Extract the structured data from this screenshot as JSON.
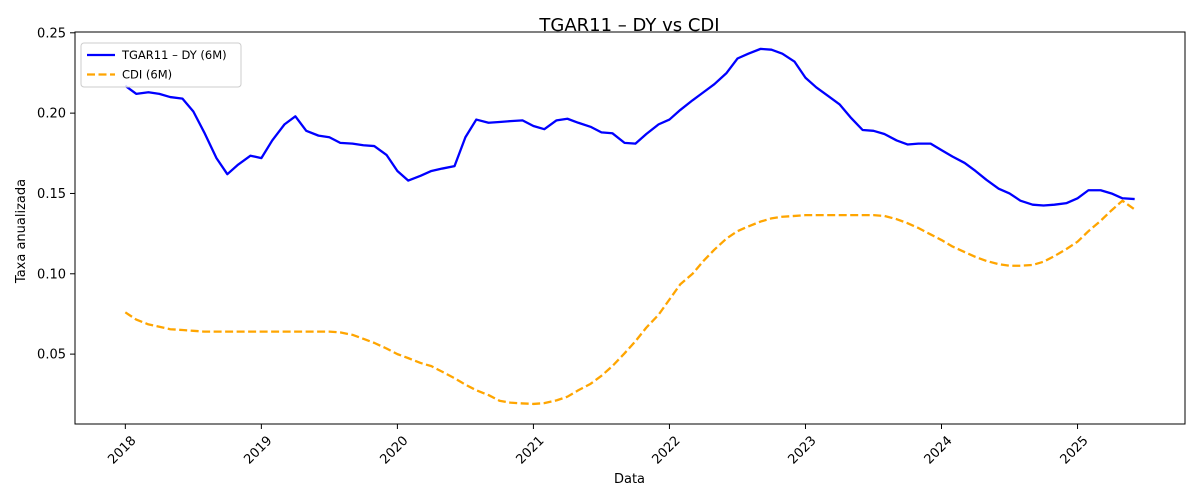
{
  "chart_data": {
    "type": "line",
    "title": "TGAR11 – DY vs CDI",
    "xlabel": "Data",
    "ylabel": "Taxa anualizada",
    "xlim": [
      2017.63,
      2025.79
    ],
    "ylim": [
      0.0065,
      0.2505
    ],
    "x_ticks": [
      2018,
      2019,
      2020,
      2021,
      2022,
      2023,
      2024,
      2025
    ],
    "x_tick_labels": [
      "2018",
      "2019",
      "2020",
      "2021",
      "2022",
      "2023",
      "2024",
      "2025"
    ],
    "y_ticks": [
      0.05,
      0.1,
      0.15,
      0.2,
      0.25
    ],
    "y_tick_labels": [
      "0.05",
      "0.10",
      "0.15",
      "0.20",
      "0.25"
    ],
    "grid": false,
    "legend_position": "top-left",
    "series": [
      {
        "name": "TGAR11 – DY (6M)",
        "color": "#0000ff",
        "style": "solid",
        "x": [
          2018.0,
          2018.08,
          2018.17,
          2018.25,
          2018.33,
          2018.42,
          2018.5,
          2018.58,
          2018.67,
          2018.75,
          2018.83,
          2018.92,
          2019.0,
          2019.08,
          2019.17,
          2019.25,
          2019.33,
          2019.42,
          2019.5,
          2019.58,
          2019.67,
          2019.75,
          2019.83,
          2019.92,
          2020.0,
          2020.08,
          2020.17,
          2020.25,
          2020.33,
          2020.42,
          2020.5,
          2020.58,
          2020.67,
          2020.75,
          2020.83,
          2020.92,
          2021.0,
          2021.08,
          2021.17,
          2021.25,
          2021.33,
          2021.42,
          2021.5,
          2021.58,
          2021.67,
          2021.75,
          2021.83,
          2021.92,
          2022.0,
          2022.08,
          2022.17,
          2022.25,
          2022.33,
          2022.42,
          2022.5,
          2022.58,
          2022.67,
          2022.75,
          2022.83,
          2022.92,
          2023.0,
          2023.08,
          2023.17,
          2023.25,
          2023.33,
          2023.42,
          2023.5,
          2023.58,
          2023.67,
          2023.75,
          2023.83,
          2023.92,
          2024.0,
          2024.08,
          2024.17,
          2024.25,
          2024.33,
          2024.42,
          2024.5,
          2024.58,
          2024.67,
          2024.75,
          2024.83,
          2024.92,
          2025.0,
          2025.08,
          2025.17,
          2025.25,
          2025.33,
          2025.42
        ],
        "values": [
          0.217,
          0.212,
          0.213,
          0.212,
          0.21,
          0.209,
          0.201,
          0.188,
          0.172,
          0.162,
          0.168,
          0.1735,
          0.172,
          0.183,
          0.193,
          0.198,
          0.189,
          0.186,
          0.185,
          0.1815,
          0.181,
          0.18,
          0.1795,
          0.174,
          0.164,
          0.158,
          0.161,
          0.164,
          0.1655,
          0.167,
          0.185,
          0.196,
          0.194,
          0.1945,
          0.195,
          0.1955,
          0.192,
          0.19,
          0.1955,
          0.1965,
          0.194,
          0.1915,
          0.188,
          0.1875,
          0.1815,
          0.181,
          0.187,
          0.193,
          0.196,
          0.202,
          0.208,
          0.213,
          0.218,
          0.225,
          0.234,
          0.237,
          0.24,
          0.2395,
          0.237,
          0.232,
          0.222,
          0.216,
          0.2105,
          0.2055,
          0.1975,
          0.1895,
          0.189,
          0.187,
          0.183,
          0.1805,
          0.181,
          0.181,
          0.177,
          0.173,
          0.169,
          0.164,
          0.1585,
          0.153,
          0.15,
          0.1455,
          0.143,
          0.1425,
          0.143,
          0.144,
          0.147,
          0.152,
          0.152,
          0.15,
          0.147,
          0.1465
        ]
      },
      {
        "name": "CDI (6M)",
        "color": "#ffa500",
        "style": "dashed",
        "x": [
          2018.0,
          2018.08,
          2018.17,
          2018.25,
          2018.33,
          2018.42,
          2018.5,
          2018.58,
          2018.67,
          2018.75,
          2018.83,
          2018.92,
          2019.0,
          2019.08,
          2019.17,
          2019.25,
          2019.33,
          2019.42,
          2019.5,
          2019.58,
          2019.67,
          2019.75,
          2019.83,
          2019.92,
          2020.0,
          2020.08,
          2020.17,
          2020.25,
          2020.33,
          2020.42,
          2020.5,
          2020.58,
          2020.67,
          2020.75,
          2020.83,
          2020.92,
          2021.0,
          2021.08,
          2021.17,
          2021.25,
          2021.33,
          2021.42,
          2021.5,
          2021.58,
          2021.67,
          2021.75,
          2021.83,
          2021.92,
          2022.0,
          2022.08,
          2022.17,
          2022.25,
          2022.33,
          2022.42,
          2022.5,
          2022.58,
          2022.67,
          2022.75,
          2022.83,
          2022.92,
          2023.0,
          2023.08,
          2023.17,
          2023.25,
          2023.33,
          2023.42,
          2023.5,
          2023.58,
          2023.67,
          2023.75,
          2023.83,
          2023.92,
          2024.0,
          2024.08,
          2024.17,
          2024.25,
          2024.33,
          2024.42,
          2024.5,
          2024.58,
          2024.67,
          2024.75,
          2024.83,
          2024.92,
          2025.0,
          2025.08,
          2025.17,
          2025.25,
          2025.33,
          2025.42
        ],
        "values": [
          0.076,
          0.0715,
          0.0685,
          0.067,
          0.0655,
          0.065,
          0.0645,
          0.064,
          0.064,
          0.064,
          0.064,
          0.064,
          0.064,
          0.064,
          0.064,
          0.064,
          0.064,
          0.064,
          0.064,
          0.0635,
          0.062,
          0.0595,
          0.057,
          0.0535,
          0.05,
          0.0475,
          0.0445,
          0.0425,
          0.039,
          0.035,
          0.031,
          0.0275,
          0.0245,
          0.021,
          0.0198,
          0.0193,
          0.019,
          0.0195,
          0.0212,
          0.0235,
          0.0275,
          0.0315,
          0.0365,
          0.0425,
          0.0505,
          0.058,
          0.0665,
          0.0745,
          0.084,
          0.0935,
          0.1,
          0.108,
          0.115,
          0.122,
          0.1265,
          0.1295,
          0.1325,
          0.1345,
          0.1355,
          0.136,
          0.1365,
          0.1365,
          0.1365,
          0.1365,
          0.1365,
          0.1365,
          0.1365,
          0.136,
          0.134,
          0.1315,
          0.1285,
          0.1245,
          0.121,
          0.117,
          0.1135,
          0.1105,
          0.108,
          0.106,
          0.105,
          0.105,
          0.1055,
          0.1075,
          0.111,
          0.1155,
          0.12,
          0.1265,
          0.133,
          0.1395,
          0.1455,
          0.14
        ]
      }
    ]
  }
}
